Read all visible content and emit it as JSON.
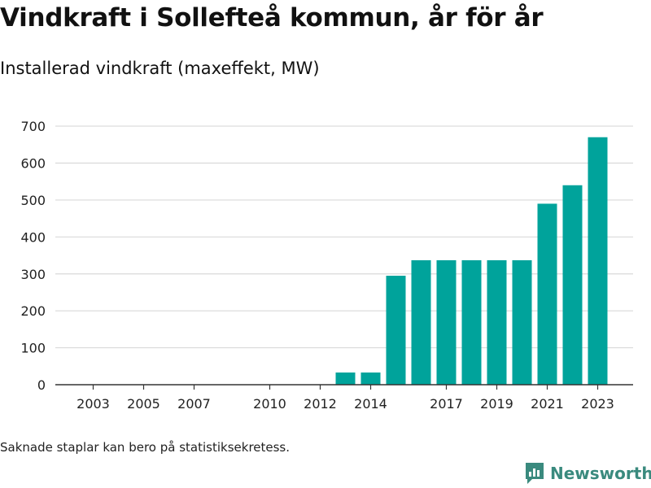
{
  "title": "Vindkraft i Sollefteå kommun, år för år",
  "subtitle": "Installerad vindkraft (maxeffekt, MW)",
  "note": "Saknade staplar kan bero på statistiksekretess.",
  "brand": {
    "name": "Newsworthy",
    "icon": "bar-chart-logo-icon",
    "color": "#3a8a7e"
  },
  "chart_data": {
    "type": "bar",
    "title": "Vindkraft i Sollefteå kommun, år för år",
    "ylabel": "Installerad vindkraft (maxeffekt, MW)",
    "xlabel": "",
    "categories": [
      "2003",
      "2004",
      "2005",
      "2006",
      "2007",
      "2008",
      "2009",
      "2010",
      "2011",
      "2012",
      "2013",
      "2014",
      "2015",
      "2016",
      "2017",
      "2018",
      "2019",
      "2020",
      "2021",
      "2022",
      "2023"
    ],
    "values": [
      0,
      0,
      0,
      0,
      0,
      null,
      null,
      0,
      0,
      0,
      33,
      33,
      295,
      337,
      337,
      337,
      337,
      337,
      490,
      540,
      670
    ],
    "x_tick_labels": [
      "2003",
      "2005",
      "2007",
      "2010",
      "2012",
      "2014",
      "2017",
      "2019",
      "2021",
      "2023"
    ],
    "y_ticks": [
      0,
      100,
      200,
      300,
      400,
      500,
      600,
      700
    ],
    "ylim": [
      0,
      720
    ],
    "bar_color": "#00a39b",
    "grid": true,
    "legend": "none"
  }
}
